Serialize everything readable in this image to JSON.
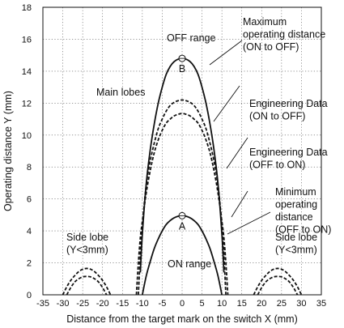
{
  "chart_data": {
    "type": "line",
    "xlabel": "Distance from the target mark on the switch X (mm)",
    "ylabel": "Operating distance Y (mm)",
    "xlim": [
      -35,
      35
    ],
    "ylim": [
      0,
      18
    ],
    "x_ticks": [
      -35,
      -30,
      -25,
      -20,
      -15,
      -10,
      -5,
      0,
      5,
      10,
      15,
      20,
      25,
      30,
      35
    ],
    "x_tick_labels": [
      "-35",
      "-30",
      "-25",
      "-20",
      "-15",
      "-10",
      "-5",
      "0",
      "5",
      "10",
      "15",
      "20",
      "25",
      "30",
      "35"
    ],
    "y_ticks": [
      0,
      2,
      4,
      6,
      8,
      10,
      12,
      14,
      16,
      18
    ],
    "y_tick_labels": [
      "0",
      "2",
      "4",
      "6",
      "8",
      "10",
      "12",
      "14",
      "16",
      "18"
    ],
    "grid": true,
    "series": [
      {
        "style": "solid",
        "x": [
          -10.5,
          -10,
          -9,
          -8,
          -7,
          -6,
          -5,
          -4,
          -3,
          -2,
          -1,
          0,
          1,
          2,
          3,
          4,
          5,
          6,
          7,
          8,
          9,
          10,
          10.5
        ],
        "y": [
          1.4,
          3.8,
          7.0,
          9.1,
          10.7,
          12.0,
          13.0,
          13.8,
          14.3,
          14.6,
          14.75,
          14.8,
          14.75,
          14.6,
          14.3,
          13.8,
          13.0,
          12.0,
          10.7,
          9.1,
          7.0,
          3.8,
          1.4
        ]
      },
      {
        "style": "solid",
        "x": [
          -10,
          -9,
          -8,
          -7,
          -6,
          -5,
          -4,
          -3,
          -2,
          -1,
          0,
          1,
          2,
          3,
          4,
          5,
          6,
          7,
          8,
          9,
          10
        ],
        "y": [
          0.0,
          1.2,
          2.1,
          2.9,
          3.5,
          4.0,
          4.4,
          4.65,
          4.82,
          4.92,
          4.95,
          4.92,
          4.82,
          4.65,
          4.4,
          4.0,
          3.5,
          2.9,
          2.1,
          1.2,
          0.0
        ]
      },
      {
        "style": "dashed",
        "x": [
          -11,
          -10.5,
          -10,
          -9,
          -8,
          -7,
          -6,
          -5,
          -4,
          -3,
          -2,
          -1,
          0,
          1,
          2,
          3,
          4,
          5,
          6,
          7,
          8,
          9,
          10,
          10.5,
          11
        ],
        "y": [
          0.0,
          2.5,
          4.4,
          6.9,
          8.4,
          9.5,
          10.4,
          11.0,
          11.5,
          11.85,
          12.05,
          12.15,
          12.2,
          12.15,
          12.05,
          11.85,
          11.5,
          11.0,
          10.4,
          9.5,
          8.4,
          6.9,
          4.4,
          2.5,
          0.0
        ]
      },
      {
        "style": "dashed",
        "x": [
          -11.5,
          -11,
          -10.5,
          -10,
          -9,
          -8,
          -7,
          -6,
          -5,
          -4,
          -3,
          -2,
          -1,
          0,
          1,
          2,
          3,
          4,
          5,
          6,
          7,
          8,
          9,
          10,
          10.5,
          11,
          11.5
        ],
        "y": [
          0.0,
          2.0,
          3.6,
          4.6,
          6.4,
          7.8,
          8.9,
          9.7,
          10.3,
          10.75,
          11.0,
          11.2,
          11.3,
          11.35,
          11.3,
          11.2,
          11.0,
          10.75,
          10.3,
          9.7,
          8.9,
          7.8,
          6.4,
          4.6,
          3.6,
          2.0,
          0.0
        ]
      },
      {
        "style": "dashed",
        "x": [
          -30,
          -29,
          -28,
          -27,
          -26,
          -25,
          -24,
          -23,
          -22,
          -21,
          -20,
          -19,
          -18
        ],
        "y": [
          0.0,
          0.5,
          0.9,
          1.2,
          1.45,
          1.6,
          1.65,
          1.6,
          1.45,
          1.2,
          0.9,
          0.5,
          0.0
        ]
      },
      {
        "style": "dashed",
        "x": [
          -29,
          -28,
          -27,
          -26,
          -25,
          -24,
          -23,
          -22,
          -21,
          -20,
          -19
        ],
        "y": [
          0.0,
          0.45,
          0.8,
          1.0,
          1.12,
          1.15,
          1.12,
          1.0,
          0.8,
          0.45,
          0.0
        ]
      },
      {
        "style": "dashed",
        "x": [
          18,
          19,
          20,
          21,
          22,
          23,
          24,
          25,
          26,
          27,
          28,
          29,
          30
        ],
        "y": [
          0.0,
          0.5,
          0.9,
          1.2,
          1.45,
          1.6,
          1.65,
          1.6,
          1.45,
          1.2,
          0.9,
          0.5,
          0.0
        ]
      },
      {
        "style": "dashed",
        "x": [
          19,
          20,
          21,
          22,
          23,
          24,
          25,
          26,
          27,
          28,
          29
        ],
        "y": [
          0.0,
          0.45,
          0.8,
          1.0,
          1.12,
          1.15,
          1.12,
          1.0,
          0.8,
          0.45,
          0.0
        ]
      }
    ],
    "points": [
      {
        "label": "B",
        "x": 0,
        "y": 14.8
      },
      {
        "label": "A",
        "x": 0,
        "y": 4.95
      }
    ],
    "annotations": [
      {
        "id": "off_range",
        "lines": [
          "OFF range"
        ]
      },
      {
        "id": "main_lobes",
        "lines": [
          "Main lobes"
        ]
      },
      {
        "id": "on_range",
        "lines": [
          "ON range"
        ]
      },
      {
        "id": "side_lobe_left",
        "lines": [
          "Side lobe",
          "(Y<3mm)"
        ]
      },
      {
        "id": "side_lobe_right",
        "lines": [
          "Side lobe",
          "(Y<3mm)"
        ]
      },
      {
        "id": "max_operating",
        "lines": [
          "Maximum",
          "operating distance",
          "(ON to OFF)"
        ]
      },
      {
        "id": "eng_on_off",
        "lines": [
          "Engineering Data",
          "(ON to OFF)"
        ]
      },
      {
        "id": "eng_off_on",
        "lines": [
          "Engineering Data",
          "(OFF to ON)"
        ]
      },
      {
        "id": "min_operating",
        "lines": [
          "Minimum",
          "operating",
          "distance",
          "(OFF to ON)"
        ]
      }
    ]
  }
}
